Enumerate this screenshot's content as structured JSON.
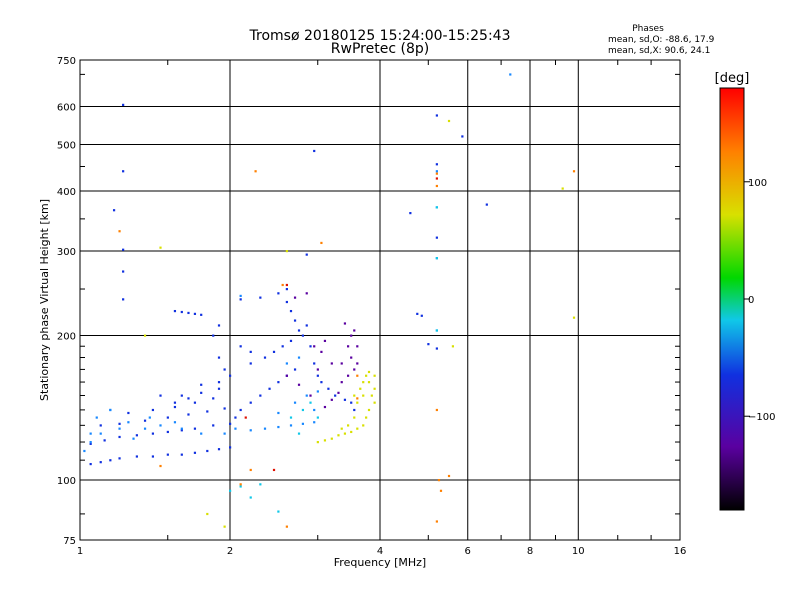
{
  "chart_data": {
    "type": "scatter",
    "title": "Tromsø 20180125 15:24:00-15:25:43",
    "subtitle": "RwPretec (8p)",
    "xlabel": "Frequency [MHz]",
    "ylabel": "Stationary phase Virtual Height [km]",
    "x_scale": "log",
    "y_scale": "log",
    "xlim": [
      1,
      16
    ],
    "ylim": [
      75,
      750
    ],
    "x_ticks": [
      1,
      2,
      4,
      6,
      8,
      10,
      16
    ],
    "y_ticks": [
      75,
      100,
      200,
      300,
      400,
      500,
      600,
      750
    ],
    "grid": true,
    "phases_box": {
      "title": "Phases",
      "line1": "mean, sd,O: -88.6, 17.9",
      "line2": "mean, sd,X:  90.6, 24.1"
    },
    "colorbar": {
      "label": "[deg]",
      "range": [
        -180,
        180
      ],
      "ticks": [
        100,
        0,
        -100
      ],
      "tick_labels": [
        "100",
        "0",
        "−100"
      ]
    },
    "colors": {
      "purple": "#5a00a0",
      "blue": "#1030e0",
      "azure": "#1888ff",
      "cyan": "#10c8e8",
      "yellow": "#d8e000",
      "orange": "#ff8000",
      "red": "#e01000"
    },
    "series": [
      {
        "color": "blue",
        "points": [
          [
            1.05,
            108
          ],
          [
            1.1,
            109
          ],
          [
            1.15,
            110
          ],
          [
            1.2,
            111
          ],
          [
            1.3,
            112
          ],
          [
            1.4,
            112
          ],
          [
            1.5,
            113
          ],
          [
            1.6,
            113
          ],
          [
            1.7,
            114
          ],
          [
            1.8,
            115
          ],
          [
            1.9,
            116
          ],
          [
            2.0,
            117
          ],
          [
            1.05,
            119
          ],
          [
            1.12,
            121
          ],
          [
            1.2,
            123
          ],
          [
            1.3,
            124
          ],
          [
            1.4,
            125
          ],
          [
            1.5,
            126
          ],
          [
            1.6,
            127
          ],
          [
            1.7,
            128
          ],
          [
            1.85,
            130
          ],
          [
            2.0,
            131
          ],
          [
            1.1,
            130
          ],
          [
            1.2,
            131
          ],
          [
            1.35,
            133
          ],
          [
            1.5,
            135
          ],
          [
            1.65,
            137
          ],
          [
            1.8,
            139
          ],
          [
            1.95,
            141
          ],
          [
            1.25,
            138
          ],
          [
            1.4,
            140
          ],
          [
            1.55,
            142
          ],
          [
            1.7,
            145
          ],
          [
            1.85,
            148
          ],
          [
            1.6,
            150
          ],
          [
            1.75,
            152
          ],
          [
            1.9,
            155
          ],
          [
            1.9,
            160
          ],
          [
            2.0,
            165
          ],
          [
            2.05,
            135
          ],
          [
            2.1,
            140
          ],
          [
            2.2,
            145
          ],
          [
            2.3,
            150
          ],
          [
            2.4,
            155
          ],
          [
            2.5,
            160
          ],
          [
            2.6,
            165
          ],
          [
            2.7,
            170
          ],
          [
            2.2,
            175
          ],
          [
            2.35,
            180
          ],
          [
            2.45,
            185
          ],
          [
            2.55,
            190
          ],
          [
            2.65,
            195
          ],
          [
            2.8,
            200
          ],
          [
            2.75,
            205
          ],
          [
            2.7,
            215
          ],
          [
            2.65,
            225
          ],
          [
            2.6,
            235
          ],
          [
            2.5,
            245
          ],
          [
            2.85,
            210
          ],
          [
            2.9,
            190
          ],
          [
            2.95,
            175
          ],
          [
            3.0,
            165
          ],
          [
            3.05,
            160
          ],
          [
            3.15,
            155
          ],
          [
            3.25,
            150
          ],
          [
            3.4,
            147
          ],
          [
            3.5,
            145
          ],
          [
            3.55,
            140
          ],
          [
            1.45,
            150
          ],
          [
            1.55,
            145
          ],
          [
            1.65,
            148
          ],
          [
            1.75,
            158
          ],
          [
            1.95,
            170
          ],
          [
            1.9,
            180
          ],
          [
            1.85,
            200
          ],
          [
            1.9,
            210
          ],
          [
            2.1,
            238
          ],
          [
            2.3,
            240
          ],
          [
            2.6,
            250
          ],
          [
            2.1,
            190
          ],
          [
            2.2,
            185
          ],
          [
            1.55,
            225
          ],
          [
            1.6,
            224
          ],
          [
            1.65,
            223
          ],
          [
            1.7,
            222
          ],
          [
            1.75,
            221
          ],
          [
            1.22,
            238
          ],
          [
            1.22,
            272
          ],
          [
            1.22,
            302
          ],
          [
            1.17,
            365
          ],
          [
            1.22,
            440
          ],
          [
            1.22,
            605
          ],
          [
            2.85,
            295
          ],
          [
            2.95,
            485
          ],
          [
            4.6,
            360
          ],
          [
            4.85,
            220
          ],
          [
            4.75,
            222
          ],
          [
            5.2,
            575
          ],
          [
            5.2,
            455
          ],
          [
            5.2,
            320
          ],
          [
            5.2,
            188
          ],
          [
            5.0,
            192
          ],
          [
            6.55,
            375
          ],
          [
            5.85,
            520
          ]
        ]
      },
      {
        "color": "azure",
        "points": [
          [
            1.02,
            115
          ],
          [
            1.05,
            120
          ],
          [
            1.1,
            125
          ],
          [
            1.08,
            135
          ],
          [
            1.15,
            140
          ],
          [
            1.2,
            128
          ],
          [
            1.25,
            132
          ],
          [
            1.35,
            128
          ],
          [
            1.45,
            130
          ],
          [
            1.55,
            132
          ],
          [
            1.6,
            128
          ],
          [
            1.75,
            125
          ],
          [
            1.95,
            125
          ],
          [
            2.05,
            128
          ],
          [
            2.2,
            127
          ],
          [
            2.35,
            128
          ],
          [
            2.5,
            129
          ],
          [
            2.65,
            130
          ],
          [
            2.8,
            131
          ],
          [
            2.95,
            132
          ],
          [
            2.5,
            138
          ],
          [
            2.7,
            145
          ],
          [
            2.85,
            150
          ],
          [
            3.0,
            153
          ],
          [
            2.95,
            140
          ],
          [
            2.6,
            175
          ],
          [
            2.75,
            180
          ],
          [
            1.15,
            140
          ],
          [
            1.05,
            125
          ],
          [
            1.28,
            122
          ],
          [
            1.38,
            135
          ],
          [
            5.2,
            440
          ],
          [
            5.2,
            370
          ],
          [
            5.2,
            290
          ],
          [
            5.2,
            205
          ],
          [
            7.3,
            700
          ],
          [
            2.1,
            242
          ]
        ]
      },
      {
        "color": "purple",
        "points": [
          [
            3.1,
            142
          ],
          [
            3.2,
            147
          ],
          [
            3.3,
            152
          ],
          [
            3.35,
            160
          ],
          [
            3.45,
            165
          ],
          [
            3.55,
            170
          ],
          [
            3.5,
            180
          ],
          [
            3.45,
            190
          ],
          [
            3.5,
            200
          ],
          [
            3.55,
            205
          ],
          [
            3.05,
            185
          ],
          [
            3.2,
            175
          ],
          [
            3.35,
            175
          ],
          [
            2.6,
            165
          ],
          [
            2.75,
            158
          ],
          [
            2.9,
            150
          ],
          [
            3.0,
            170
          ],
          [
            2.85,
            245
          ],
          [
            2.7,
            240
          ],
          [
            3.4,
            212
          ],
          [
            3.6,
            190
          ],
          [
            3.6,
            175
          ],
          [
            2.95,
            190
          ],
          [
            3.1,
            195
          ]
        ]
      },
      {
        "color": "cyan",
        "points": [
          [
            2.0,
            95
          ],
          [
            2.1,
            97
          ],
          [
            2.2,
            92
          ],
          [
            2.3,
            98
          ],
          [
            2.5,
            86
          ],
          [
            2.8,
            140
          ],
          [
            2.65,
            135
          ],
          [
            2.9,
            145
          ],
          [
            3.0,
            135
          ],
          [
            2.75,
            125
          ],
          [
            5.2,
            205
          ],
          [
            5.2,
            290
          ],
          [
            5.2,
            370
          ]
        ]
      },
      {
        "color": "yellow",
        "points": [
          [
            3.0,
            120
          ],
          [
            3.1,
            121
          ],
          [
            3.2,
            122
          ],
          [
            3.3,
            124
          ],
          [
            3.4,
            125
          ],
          [
            3.5,
            126
          ],
          [
            3.6,
            128
          ],
          [
            3.7,
            130
          ],
          [
            3.75,
            135
          ],
          [
            3.8,
            140
          ],
          [
            3.9,
            145
          ],
          [
            3.85,
            150
          ],
          [
            3.9,
            155
          ],
          [
            3.7,
            160
          ],
          [
            3.75,
            165
          ],
          [
            3.8,
            168
          ],
          [
            3.6,
            145
          ],
          [
            3.55,
            150
          ],
          [
            3.65,
            155
          ],
          [
            3.55,
            135
          ],
          [
            3.7,
            150
          ],
          [
            3.35,
            128
          ],
          [
            3.45,
            130
          ],
          [
            3.8,
            160
          ],
          [
            3.9,
            165
          ],
          [
            1.8,
            85
          ],
          [
            1.95,
            80
          ],
          [
            2.6,
            300
          ],
          [
            1.45,
            305
          ],
          [
            9.3,
            405
          ],
          [
            9.8,
            218
          ],
          [
            5.5,
            560
          ],
          [
            5.6,
            190
          ],
          [
            1.35,
            200
          ]
        ]
      },
      {
        "color": "orange",
        "points": [
          [
            1.2,
            330
          ],
          [
            2.25,
            440
          ],
          [
            2.55,
            255
          ],
          [
            2.6,
            80
          ],
          [
            2.2,
            105
          ],
          [
            2.1,
            98
          ],
          [
            3.05,
            312
          ],
          [
            3.6,
            148
          ],
          [
            3.6,
            165
          ],
          [
            5.2,
            435
          ],
          [
            5.2,
            410
          ],
          [
            5.25,
            100
          ],
          [
            5.3,
            95
          ],
          [
            5.2,
            82
          ],
          [
            5.2,
            140
          ],
          [
            9.8,
            440
          ],
          [
            5.5,
            102
          ],
          [
            1.45,
            107
          ]
        ]
      },
      {
        "color": "red",
        "points": [
          [
            2.6,
            255
          ],
          [
            2.45,
            105
          ],
          [
            5.2,
            425
          ],
          [
            2.15,
            135
          ]
        ]
      }
    ]
  }
}
